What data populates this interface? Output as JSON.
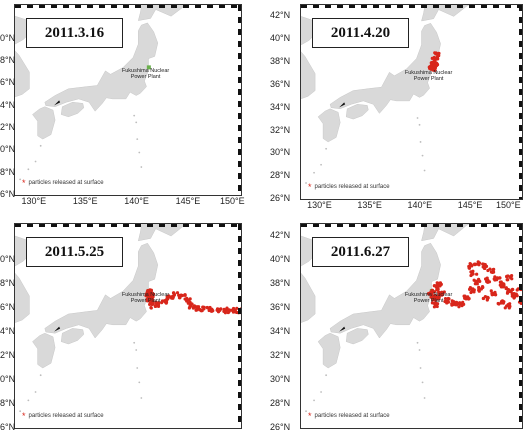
{
  "figure": {
    "panels": [
      {
        "date": "2011.3.16",
        "lat_labels": [
          "",
          "",
          "",
          "",
          "",
          "",
          "",
          ""
        ],
        "lon_labels": [
          "130°E",
          "135°E",
          "140°E",
          "145°E",
          "150°E"
        ],
        "plant_label_line1": "Fukushima Nuclear",
        "plant_label_line2": "Power Plant",
        "legend": "particles released at surface",
        "plume_stage": 0
      },
      {
        "date": "2011.4.20",
        "lat_labels": [
          "42°N",
          "40°N",
          "38°N",
          "36°N",
          "34°N",
          "32°N",
          "30°N",
          "28°N",
          "26°N"
        ],
        "lon_labels": [
          "130°E",
          "135°E",
          "140°E",
          "145°E",
          "150°E"
        ],
        "plant_label_line1": "Fukushima Nuclear",
        "plant_label_line2": "Power Plant",
        "legend": "particles released at surface",
        "plume_stage": 1
      },
      {
        "date": "2011.5.25",
        "lat_labels": [
          "",
          "",
          "",
          "",
          "",
          "",
          "",
          ""
        ],
        "lon_labels": [
          "",
          "",
          "",
          "",
          ""
        ],
        "plant_label_line1": "Fukushima Nuclear",
        "plant_label_line2": "Power Plant",
        "legend": "particles released at surface",
        "plume_stage": 2
      },
      {
        "date": "2011.6.27",
        "lat_labels": [
          "42°N",
          "40°N",
          "38°N",
          "36°N",
          "34°N",
          "32°N",
          "30°N",
          "28°N",
          "26°N"
        ],
        "lon_labels": [
          "",
          "",
          "",
          "",
          ""
        ],
        "plant_label_line1": "Fukushima Nuclear",
        "plant_label_line2": "Power Plant",
        "legend": "particles released at surface",
        "plume_stage": 3
      }
    ],
    "partial_lat_prefix": [
      "0°N",
      "8°N",
      "6°N",
      "4°N",
      "2°N",
      "0°N",
      "8°N",
      "6°N"
    ],
    "colors": {
      "land": "#d9d9d9",
      "ocean": "#ffffff",
      "plume": "#d8261b",
      "plant_marker": "#6ab04c"
    },
    "map_extent": {
      "lon": [
        128,
        150
      ],
      "lat": [
        26,
        43
      ]
    }
  }
}
